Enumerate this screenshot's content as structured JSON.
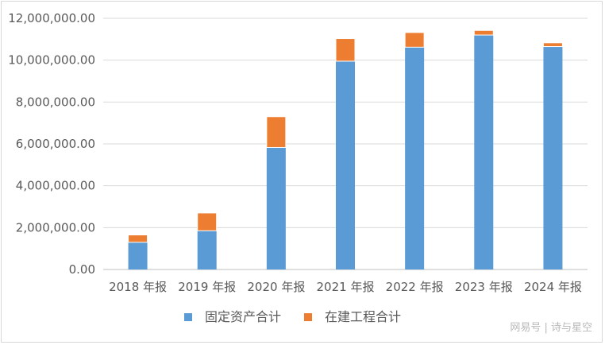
{
  "chart_data": {
    "type": "bar",
    "stacked": true,
    "title": "",
    "xlabel": "",
    "ylabel": "",
    "categories": [
      "2018 年报",
      "2019 年报",
      "2020 年报",
      "2021 年报",
      "2022 年报",
      "2023 年报",
      "2024 年报"
    ],
    "series": [
      {
        "name": "固定资产合计",
        "color": "#5b9bd5",
        "values": [
          1300000,
          1850000,
          5830000,
          9950000,
          10620000,
          11200000,
          10650000
        ]
      },
      {
        "name": "在建工程合计",
        "color": "#ed7d31",
        "values": [
          350000,
          850000,
          1470000,
          1080000,
          700000,
          220000,
          180000
        ]
      }
    ],
    "yticks": [
      "0.00",
      "2,000,000.00",
      "4,000,000.00",
      "6,000,000.00",
      "8,000,000.00",
      "10,000,000.00",
      "12,000,000.00"
    ],
    "ylim": [
      0,
      12000000
    ],
    "grid": true,
    "legend_position": "bottom"
  },
  "watermark": "网易号 | 诗与星空"
}
